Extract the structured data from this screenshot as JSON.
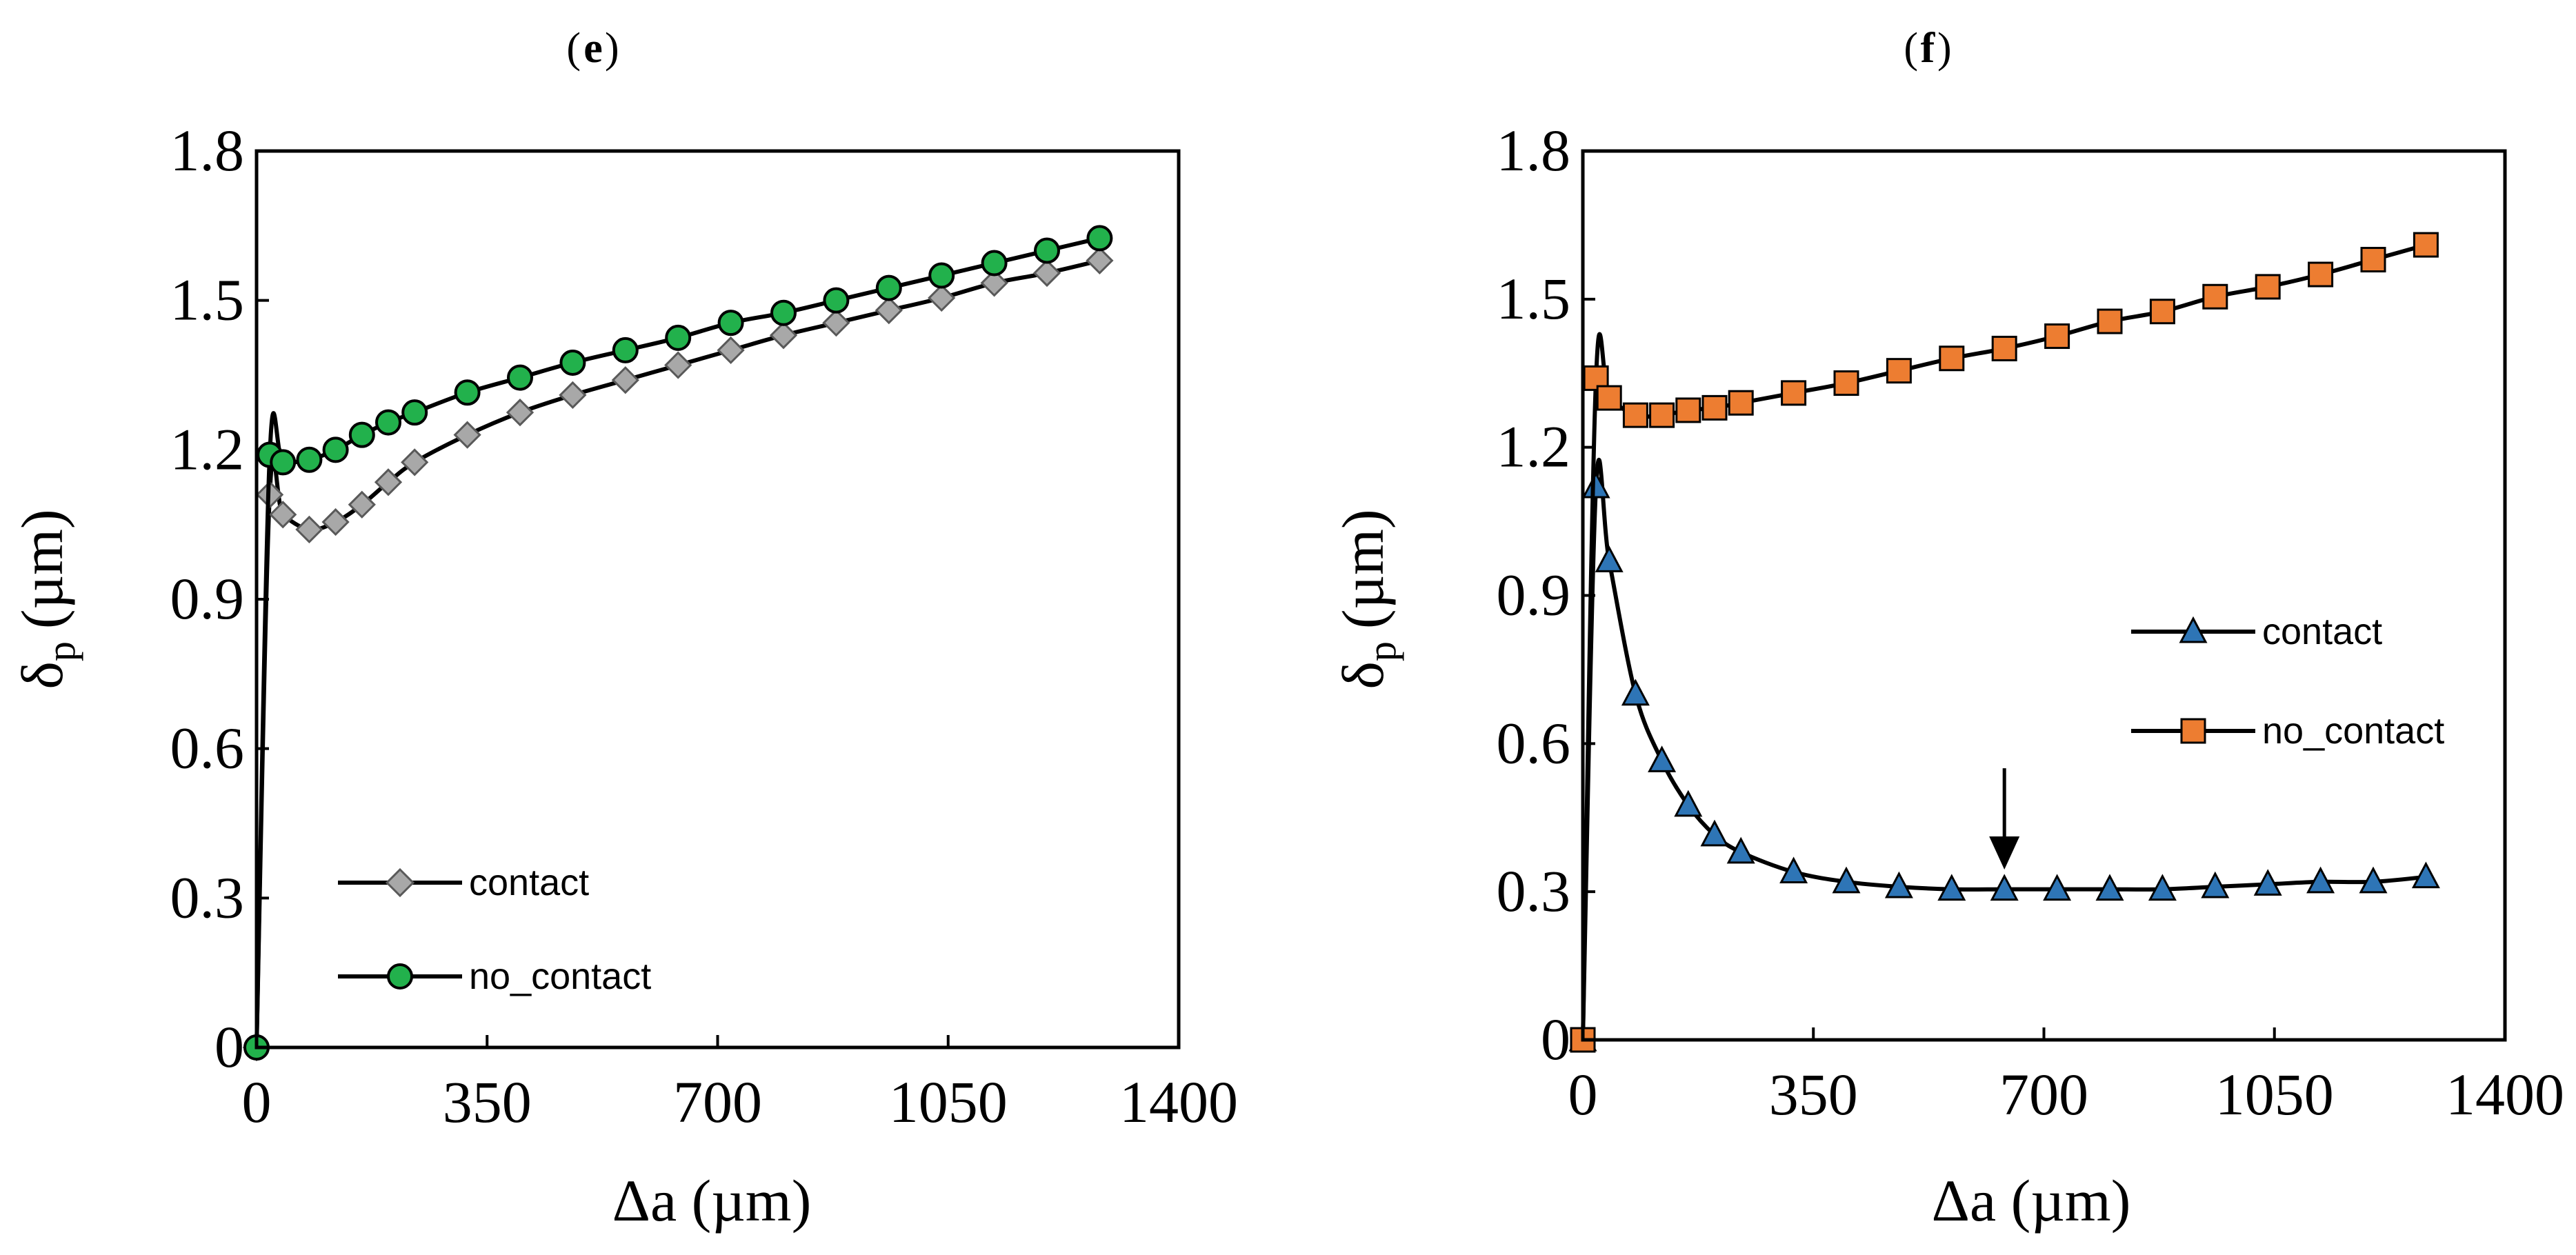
{
  "chart_data": [
    {
      "type": "line",
      "panel_label": "e",
      "xlabel": "Δa (µm)",
      "ylabel_main": "δ",
      "ylabel_sub": "p",
      "ylabel_unit": "(µm)",
      "xlim": [
        0,
        1400
      ],
      "ylim": [
        0,
        1.8
      ],
      "xticks": [
        0,
        350,
        700,
        1050,
        1400
      ],
      "xtick_labels": [
        "0",
        "350",
        "700",
        "1050",
        "1400"
      ],
      "yticks": [
        0,
        0.3,
        0.6,
        0.9,
        1.2,
        1.5,
        1.8
      ],
      "ytick_labels": [
        "0",
        "0.3",
        "0.6",
        "0.9",
        "1.2",
        "1.5",
        "1.8"
      ],
      "grid": false,
      "legend_position": "bottom-left",
      "series": [
        {
          "name": "contact",
          "marker": "diamond",
          "color": "#a8a8a8",
          "x": [
            0,
            20,
            40,
            80,
            120,
            160,
            200,
            240,
            320,
            400,
            480,
            560,
            640,
            720,
            800,
            880,
            960,
            1040,
            1120,
            1200,
            1280
          ],
          "y": [
            0.0,
            1.11,
            1.07,
            1.04,
            1.055,
            1.09,
            1.135,
            1.175,
            1.23,
            1.275,
            1.31,
            1.34,
            1.37,
            1.4,
            1.43,
            1.455,
            1.48,
            1.505,
            1.535,
            1.555,
            1.58
          ]
        },
        {
          "name": "no_contact",
          "marker": "circle",
          "color": "#22b14c",
          "x": [
            0,
            20,
            40,
            80,
            120,
            160,
            200,
            240,
            320,
            400,
            480,
            560,
            640,
            720,
            800,
            880,
            960,
            1040,
            1120,
            1200,
            1280
          ],
          "y": [
            0.0,
            1.19,
            1.175,
            1.18,
            1.2,
            1.23,
            1.255,
            1.275,
            1.315,
            1.345,
            1.375,
            1.4,
            1.425,
            1.455,
            1.475,
            1.5,
            1.525,
            1.55,
            1.575,
            1.6,
            1.625
          ]
        }
      ]
    },
    {
      "type": "line",
      "panel_label": "f",
      "xlabel": "Δa (µm)",
      "ylabel_main": "δ",
      "ylabel_sub": "p",
      "ylabel_unit": "(µm)",
      "xlim": [
        0,
        1400
      ],
      "ylim": [
        0,
        1.8
      ],
      "xticks": [
        0,
        350,
        700,
        1050,
        1400
      ],
      "xtick_labels": [
        "0",
        "350",
        "700",
        "1050",
        "1400"
      ],
      "yticks": [
        0,
        0.3,
        0.6,
        0.9,
        1.2,
        1.5,
        1.8
      ],
      "ytick_labels": [
        "0",
        "0.3",
        "0.6",
        "0.9",
        "1.2",
        "1.5",
        "1.8"
      ],
      "grid": false,
      "legend_position": "center-right",
      "annotation": {
        "type": "arrow-down",
        "x": 640,
        "y_from": 0.55,
        "y_to": 0.345
      },
      "series": [
        {
          "name": "contact",
          "marker": "triangle",
          "color": "#2e75b6",
          "x": [
            0,
            20,
            40,
            80,
            120,
            160,
            200,
            240,
            320,
            400,
            480,
            560,
            640,
            720,
            800,
            880,
            960,
            1040,
            1120,
            1200,
            1280
          ],
          "y": [
            0.0,
            1.12,
            0.97,
            0.7,
            0.565,
            0.475,
            0.415,
            0.38,
            0.34,
            0.32,
            0.31,
            0.305,
            0.305,
            0.305,
            0.305,
            0.305,
            0.31,
            0.315,
            0.32,
            0.32,
            0.33
          ]
        },
        {
          "name": "no_contact",
          "marker": "square",
          "color": "#ed7d31",
          "x": [
            0,
            20,
            40,
            80,
            120,
            160,
            200,
            240,
            320,
            400,
            480,
            560,
            640,
            720,
            800,
            880,
            960,
            1040,
            1120,
            1200,
            1280
          ],
          "y": [
            0.0,
            1.34,
            1.3,
            1.265,
            1.265,
            1.275,
            1.28,
            1.29,
            1.31,
            1.33,
            1.355,
            1.38,
            1.4,
            1.425,
            1.455,
            1.475,
            1.505,
            1.525,
            1.55,
            1.58,
            1.61
          ]
        }
      ]
    }
  ]
}
